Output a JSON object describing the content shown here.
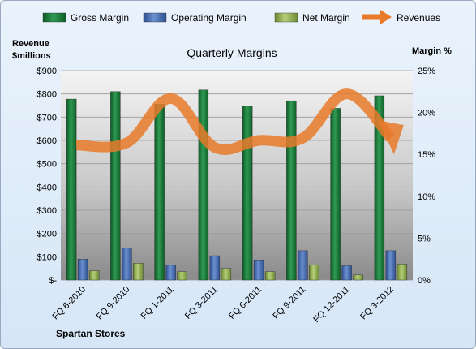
{
  "chart_data": {
    "type": "bar",
    "title": "Quarterly Margins",
    "footer": "Spartan Stores",
    "categories": [
      "FQ 6-2010",
      "FQ 9-2010",
      "FQ 1-2011",
      "FQ 3-2011",
      "FQ 6-2011",
      "FQ 9-2011",
      "FQ 12-2011",
      "FQ 3-2012"
    ],
    "y_left": {
      "label_line1": "Revenue",
      "label_line2": "$millions",
      "range": [
        0,
        900
      ],
      "ticks": [
        "$-",
        "$100",
        "$200",
        "$300",
        "$400",
        "$500",
        "$600",
        "$700",
        "$800",
        "$900"
      ]
    },
    "y_right": {
      "label": "Margin %",
      "range": [
        0,
        25
      ],
      "ticks": [
        "0%",
        "5%",
        "10%",
        "15%",
        "20%",
        "25%"
      ]
    },
    "series": [
      {
        "name": "Gross Margin",
        "type": "bar",
        "axis": "right",
        "color": "#1f7a3c",
        "values": [
          21.6,
          22.5,
          21.0,
          22.7,
          20.8,
          21.4,
          20.5,
          22.0
        ]
      },
      {
        "name": "Operating Margin",
        "type": "bar",
        "axis": "right",
        "color": "#4a6fb2",
        "values": [
          2.5,
          3.8,
          1.8,
          2.9,
          2.4,
          3.5,
          1.7,
          3.5
        ]
      },
      {
        "name": "Net Margin",
        "type": "bar",
        "axis": "right",
        "color": "#98b75a",
        "values": [
          1.1,
          2.0,
          1.0,
          1.4,
          1.0,
          1.8,
          0.6,
          1.9
        ]
      },
      {
        "name": "Revenues",
        "type": "line",
        "axis": "left",
        "color": "#f0883a",
        "values": [
          580,
          590,
          780,
          570,
          600,
          610,
          800,
          610
        ]
      }
    ],
    "legend_position": "top",
    "grid": true
  }
}
